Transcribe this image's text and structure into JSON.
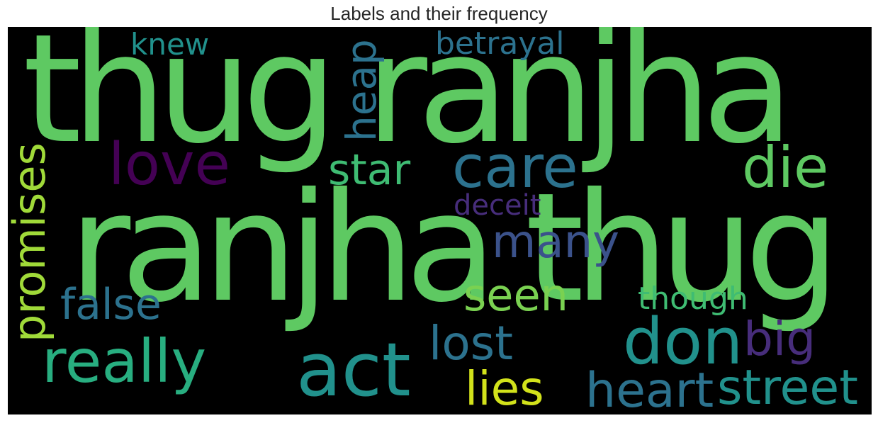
{
  "title": "Labels and their frequency",
  "words": [
    {
      "text": "thug ranjha",
      "color": "#5ec962",
      "orientation": "horizontal"
    },
    {
      "text": "ranjha thug",
      "color": "#5ec962",
      "orientation": "horizontal"
    },
    {
      "text": "knew",
      "color": "#21918c",
      "orientation": "horizontal"
    },
    {
      "text": "betrayal",
      "color": "#2c728e",
      "orientation": "horizontal"
    },
    {
      "text": "heap",
      "color": "#2c728e",
      "orientation": "vertical"
    },
    {
      "text": "love",
      "color": "#440154",
      "orientation": "horizontal"
    },
    {
      "text": "care",
      "color": "#2c728e",
      "orientation": "horizontal"
    },
    {
      "text": "star",
      "color": "#3fbc73",
      "orientation": "horizontal"
    },
    {
      "text": "die",
      "color": "#5ec962",
      "orientation": "horizontal"
    },
    {
      "text": "promises",
      "color": "#a0da39",
      "orientation": "vertical"
    },
    {
      "text": "deceit",
      "color": "#472d7b",
      "orientation": "horizontal"
    },
    {
      "text": "many",
      "color": "#3b528b",
      "orientation": "horizontal"
    },
    {
      "text": "false",
      "color": "#2c728e",
      "orientation": "horizontal"
    },
    {
      "text": "seen",
      "color": "#7ad151",
      "orientation": "horizontal"
    },
    {
      "text": "though",
      "color": "#3fbc73",
      "orientation": "horizontal"
    },
    {
      "text": "really",
      "color": "#28ae80",
      "orientation": "horizontal"
    },
    {
      "text": "act",
      "color": "#21918c",
      "orientation": "horizontal"
    },
    {
      "text": "lost",
      "color": "#2c728e",
      "orientation": "horizontal"
    },
    {
      "text": "don",
      "color": "#21918c",
      "orientation": "horizontal"
    },
    {
      "text": "big",
      "color": "#472d7b",
      "orientation": "horizontal"
    },
    {
      "text": "lies",
      "color": "#d2e21b",
      "orientation": "horizontal"
    },
    {
      "text": "heart",
      "color": "#2c728e",
      "orientation": "horizontal"
    },
    {
      "text": "street",
      "color": "#21918c",
      "orientation": "horizontal"
    }
  ]
}
